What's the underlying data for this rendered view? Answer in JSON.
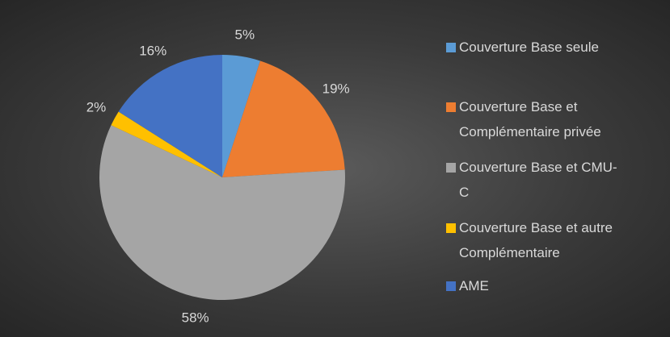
{
  "chart_data": {
    "type": "pie",
    "categories": [
      "Couverture Base seule",
      "Couverture Base et Complémentaire privée",
      "Couverture Base et CMU-C",
      "Couverture Base et autre Complémentaire",
      "AME"
    ],
    "values": [
      5,
      19,
      58,
      2,
      16
    ],
    "value_labels": [
      "5%",
      "19%",
      "58%",
      "2%",
      "16%"
    ],
    "colors": [
      "#5b9bd5",
      "#ed7d31",
      "#a5a5a5",
      "#ffc000",
      "#4472c4"
    ],
    "legend": "right"
  }
}
